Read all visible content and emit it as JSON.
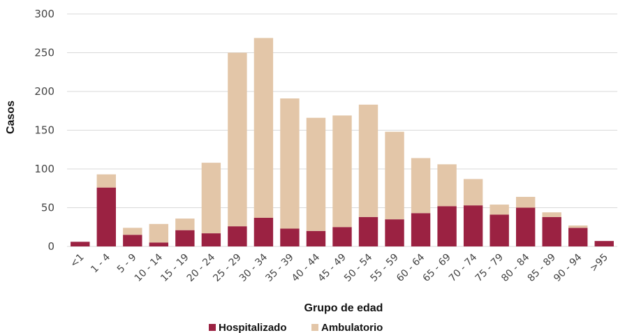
{
  "chart_data": {
    "type": "bar",
    "stacked": true,
    "title": "",
    "xlabel": "Grupo de edad",
    "ylabel": "Casos",
    "ylim": [
      0,
      300
    ],
    "yticks": [
      0,
      50,
      100,
      150,
      200,
      250,
      300
    ],
    "grid": "horizontal",
    "legend_position": "bottom",
    "categories": [
      "<1",
      "1 - 4",
      "5 - 9",
      "10 - 14",
      "15 - 19",
      "20 - 24",
      "25 - 29",
      "30 - 34",
      "35 - 39",
      "40 - 44",
      "45 - 49",
      "50 - 54",
      "55 - 59",
      "60 - 64",
      "65 - 69",
      "70 - 74",
      "75 - 79",
      "80 - 84",
      "85 - 89",
      "90 - 94",
      ">95"
    ],
    "series": [
      {
        "name": "Hospitalizado",
        "color": "#9b2242",
        "values": [
          6,
          76,
          15,
          5,
          21,
          17,
          26,
          37,
          23,
          20,
          25,
          38,
          35,
          43,
          52,
          53,
          41,
          50,
          38,
          24,
          7
        ]
      },
      {
        "name": "Ambulatorio",
        "color": "#e3c6a8",
        "values": [
          0,
          17,
          9,
          24,
          15,
          91,
          224,
          232,
          168,
          146,
          144,
          145,
          113,
          71,
          54,
          34,
          13,
          14,
          6,
          3,
          0
        ]
      }
    ]
  }
}
